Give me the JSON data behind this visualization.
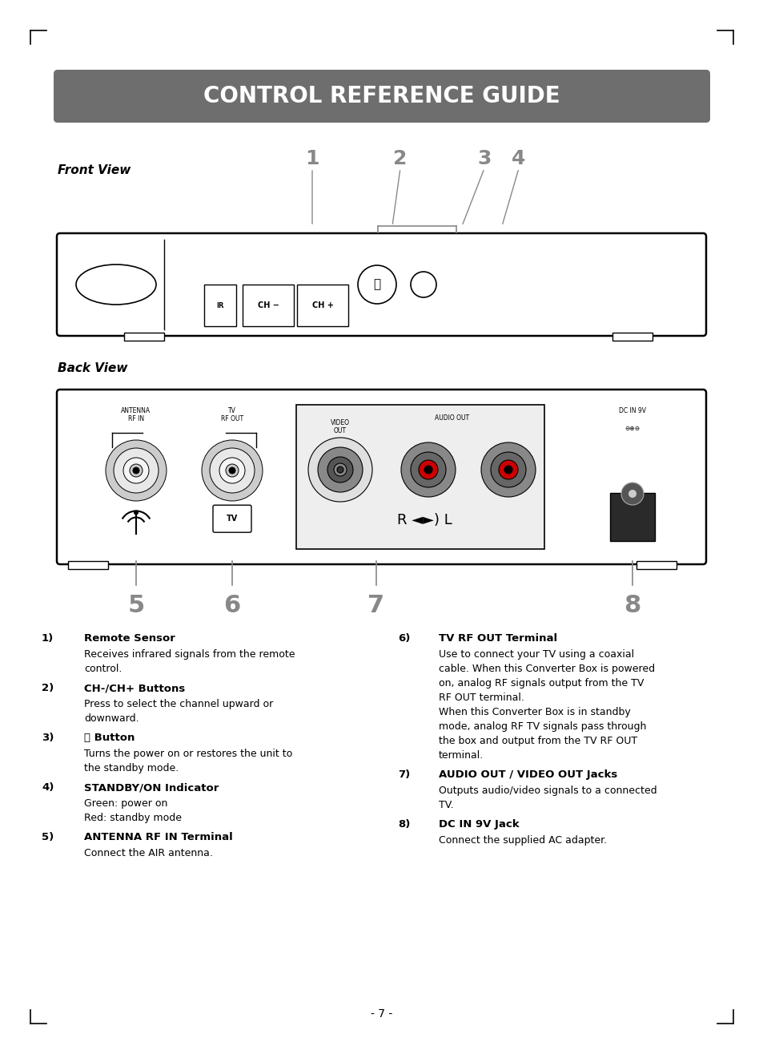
{
  "title": "CONTROL REFERENCE GUIDE",
  "title_bg": "#6e6e6e",
  "title_color": "#ffffff",
  "title_fontsize": 20,
  "page_bg": "#ffffff",
  "front_view_label": "Front View",
  "back_view_label": "Back View",
  "gray_color": "#888888",
  "page_number": "- 7 -",
  "items_left": [
    {
      "num": "1)",
      "bold": "Remote Sensor",
      "text": "Receives infrared signals from the remote\ncontrol."
    },
    {
      "num": "2)",
      "bold": "CH-/CH+ Buttons",
      "text": "Press to select the channel upward or\ndownward."
    },
    {
      "num": "3)",
      "bold": "⒨ Button",
      "text": "Turns the power on or restores the unit to\nthe standby mode."
    },
    {
      "num": "4)",
      "bold": "STANDBY/ON Indicator",
      "text": "Green: power on\nRed: standby mode"
    },
    {
      "num": "5)",
      "bold": "ANTENNA RF IN Terminal",
      "text": "Connect the AIR antenna."
    }
  ],
  "items_right": [
    {
      "num": "6)",
      "bold": "TV RF OUT Terminal",
      "text": "Use to connect your TV using a coaxial\ncable. When this Converter Box is powered\non, analog RF signals output from the TV\nRF OUT terminal.\nWhen this Converter Box is in standby\nmode, analog RF TV signals pass through\nthe box and output from the TV RF OUT\nterminal."
    },
    {
      "num": "7)",
      "bold": "AUDIO OUT / VIDEO OUT Jacks",
      "text": "Outputs audio/video signals to a connected\nTV."
    },
    {
      "num": "8)",
      "bold": "DC IN 9V Jack",
      "text": "Connect the supplied AC adapter."
    }
  ]
}
